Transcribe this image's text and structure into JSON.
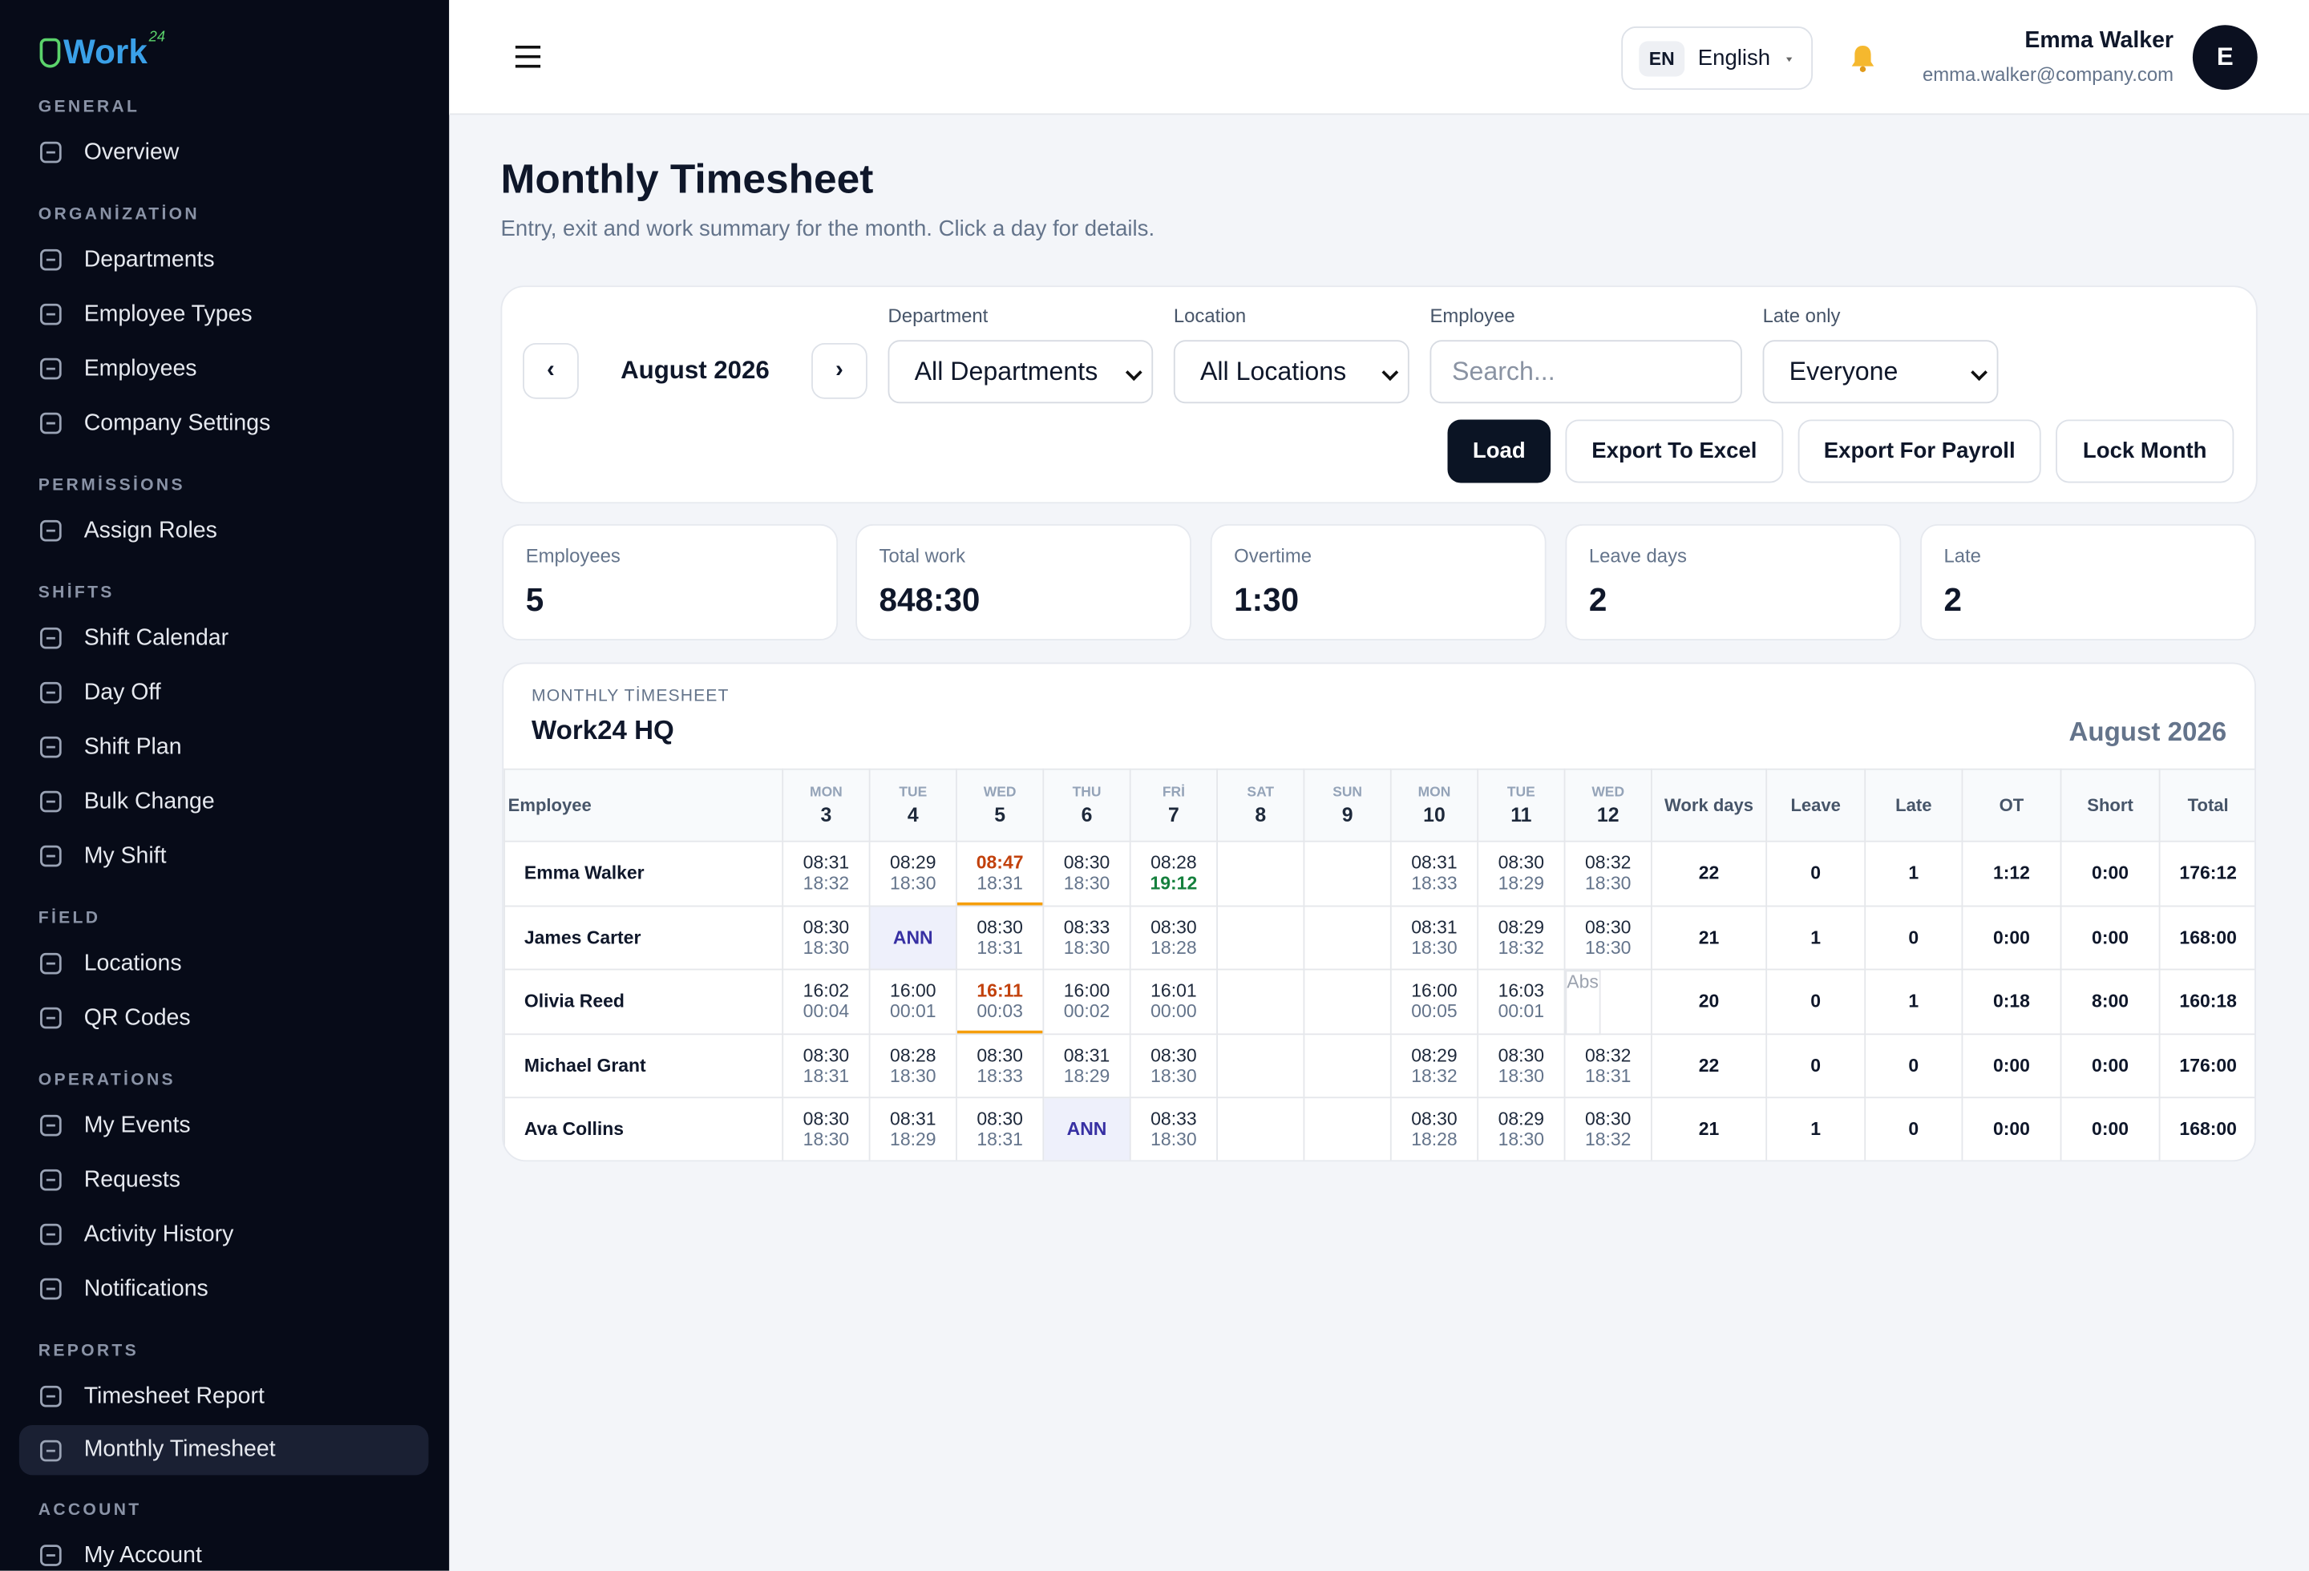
{
  "sidebar": {
    "logo": "Work",
    "logo_sup": "24",
    "sections": [
      {
        "title": "GENERAL",
        "items": [
          {
            "label": "Overview"
          }
        ]
      },
      {
        "title": "ORGANİZATİON",
        "items": [
          {
            "label": "Departments"
          },
          {
            "label": "Employee Types"
          },
          {
            "label": "Employees"
          },
          {
            "label": "Company Settings"
          }
        ]
      },
      {
        "title": "PERMİSSİONS",
        "items": [
          {
            "label": "Assign Roles"
          }
        ]
      },
      {
        "title": "SHİFTS",
        "items": [
          {
            "label": "Shift Calendar"
          },
          {
            "label": "Day Off"
          },
          {
            "label": "Shift Plan"
          },
          {
            "label": "Bulk Change"
          },
          {
            "label": "My Shift"
          }
        ]
      },
      {
        "title": "FİELD",
        "items": [
          {
            "label": "Locations"
          },
          {
            "label": "QR Codes"
          }
        ]
      },
      {
        "title": "OPERATİONS",
        "items": [
          {
            "label": "My Events"
          },
          {
            "label": "Requests"
          },
          {
            "label": "Activity History"
          },
          {
            "label": "Notifications"
          }
        ]
      },
      {
        "title": "REPORTS",
        "items": [
          {
            "label": "Timesheet Report"
          },
          {
            "label": "Monthly Timesheet",
            "active": true
          }
        ]
      },
      {
        "title": "ACCOUNT",
        "items": [
          {
            "label": "My Account"
          }
        ]
      }
    ]
  },
  "header": {
    "lang_code": "EN",
    "language": "English",
    "user_name": "Emma Walker",
    "user_email": "emma.walker@company.com",
    "avatar": "E"
  },
  "page": {
    "title": "Monthly Timesheet",
    "subtitle": "Entry, exit and work summary for the month. Click a day for details."
  },
  "filters": {
    "prev": "‹",
    "month": "August 2026",
    "next": "›",
    "fields": [
      {
        "label": "Department",
        "value": "All Departments"
      },
      {
        "label": "Location",
        "value": "All Locations"
      },
      {
        "label": "Employee",
        "placeholder": "Search..."
      },
      {
        "label": "Late only",
        "value": "Everyone"
      }
    ],
    "buttons": [
      "Load",
      "Export To Excel",
      "Export For Payroll",
      "Lock Month"
    ]
  },
  "stats": [
    {
      "label": "Employees",
      "value": 5
    },
    {
      "label": "Total work",
      "value": "848:30"
    },
    {
      "label": "Overtime",
      "value": "1:30"
    },
    {
      "label": "Leave days",
      "value": 2
    },
    {
      "label": "Late",
      "value": 2
    }
  ],
  "table": {
    "eyebrow": "MONTHLY TİMESHEET",
    "name": "Work24 HQ",
    "period": "August 2026",
    "employee_header": "Employee",
    "days": [
      {
        "dow": "MON",
        "day": 3
      },
      {
        "dow": "TUE",
        "day": 4
      },
      {
        "dow": "WED",
        "day": 5
      },
      {
        "dow": "THU",
        "day": 6
      },
      {
        "dow": "FRİ",
        "day": 7
      },
      {
        "dow": "SAT",
        "day": 8
      },
      {
        "dow": "SUN",
        "day": 9
      },
      {
        "dow": "MON",
        "day": 10
      },
      {
        "dow": "TUE",
        "day": 11
      },
      {
        "dow": "WED",
        "day": 12
      }
    ],
    "summary_headers": [
      "Work days",
      "Leave",
      "Late",
      "OT",
      "Short",
      "Total"
    ],
    "rows": [
      {
        "name": "Emma Walker",
        "cells": [
          {
            "in": "08:31",
            "out": "18:32"
          },
          {
            "in": "08:29",
            "out": "18:30"
          },
          {
            "in": "08:47",
            "out": "18:31",
            "late": true
          },
          {
            "in": "08:30",
            "out": "18:30"
          },
          {
            "in": "08:28",
            "out": "19:12",
            "overtime": true
          },
          null,
          null,
          {
            "in": "08:31",
            "out": "18:33"
          },
          {
            "in": "08:30",
            "out": "18:29"
          },
          {
            "in": "08:32",
            "out": "18:30"
          }
        ],
        "summary": [
          22,
          0,
          1,
          "1:12",
          "0:00",
          "176:12"
        ]
      },
      {
        "name": "James Carter",
        "cells": [
          {
            "in": "08:30",
            "out": "18:30"
          },
          {
            "status": "ANN"
          },
          {
            "in": "08:30",
            "out": "18:31"
          },
          {
            "in": "08:33",
            "out": "18:30"
          },
          {
            "in": "08:30",
            "out": "18:28"
          },
          null,
          null,
          {
            "in": "08:31",
            "out": "18:30"
          },
          {
            "in": "08:29",
            "out": "18:32"
          },
          {
            "in": "08:30",
            "out": "18:30"
          }
        ],
        "summary": [
          21,
          1,
          0,
          "0:00",
          "0:00",
          "168:00"
        ]
      },
      {
        "name": "Olivia Reed",
        "cells": [
          {
            "in": "16:02",
            "out": "00:04"
          },
          {
            "in": "16:00",
            "out": "00:01"
          },
          {
            "in": "16:11",
            "out": "00:03",
            "late": true
          },
          {
            "in": "16:00",
            "out": "00:02"
          },
          {
            "in": "16:01",
            "out": "00:00"
          },
          null,
          null,
          {
            "in": "16:00",
            "out": "00:05"
          },
          {
            "in": "16:03",
            "out": "00:01"
          },
          {
            "status": "Abs"
          }
        ],
        "summary": [
          20,
          0,
          1,
          "0:18",
          "8:00",
          "160:18"
        ]
      },
      {
        "name": "Michael Grant",
        "cells": [
          {
            "in": "08:30",
            "out": "18:31"
          },
          {
            "in": "08:28",
            "out": "18:30"
          },
          {
            "in": "08:30",
            "out": "18:33"
          },
          {
            "in": "08:31",
            "out": "18:29"
          },
          {
            "in": "08:30",
            "out": "18:30"
          },
          null,
          null,
          {
            "in": "08:29",
            "out": "18:32"
          },
          {
            "in": "08:30",
            "out": "18:30"
          },
          {
            "in": "08:32",
            "out": "18:31"
          }
        ],
        "summary": [
          22,
          0,
          0,
          "0:00",
          "0:00",
          "176:00"
        ]
      },
      {
        "name": "Ava Collins",
        "cells": [
          {
            "in": "08:30",
            "out": "18:30"
          },
          {
            "in": "08:31",
            "out": "18:29"
          },
          {
            "in": "08:30",
            "out": "18:31"
          },
          {
            "status": "ANN"
          },
          {
            "in": "08:33",
            "out": "18:30"
          },
          null,
          null,
          {
            "in": "08:30",
            "out": "18:28"
          },
          {
            "in": "08:29",
            "out": "18:30"
          },
          {
            "in": "08:30",
            "out": "18:32"
          }
        ],
        "summary": [
          21,
          1,
          0,
          "0:00",
          "0:00",
          "168:00"
        ]
      }
    ]
  }
}
